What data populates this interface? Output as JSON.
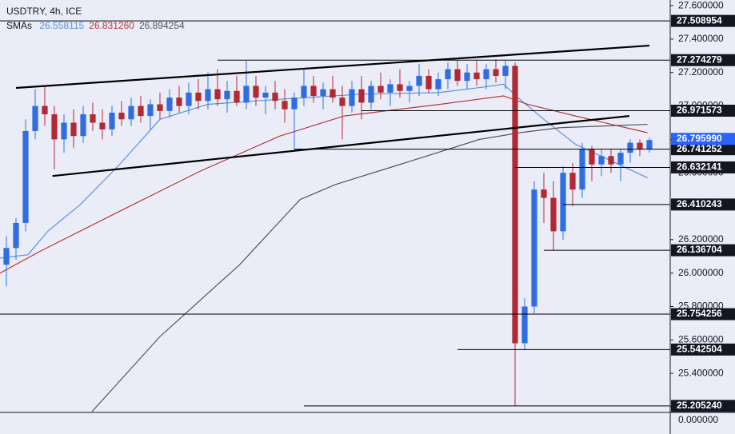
{
  "chart_data": {
    "type": "candlestick",
    "title": "USDTRY, 4h, ICE",
    "indicator_label": "SMAs",
    "xlim": [
      -0.6667,
      69.1667
    ],
    "ylim": [
      25.171,
      27.634
    ],
    "yticks": [
      {
        "value": 27.6,
        "label": "27.600000"
      },
      {
        "value": 27.4,
        "label": "27.400000"
      },
      {
        "value": 27.2,
        "label": "27.200000"
      },
      {
        "value": 27.0,
        "label": "27.000000"
      },
      {
        "value": 26.8,
        "label": "26.800000"
      },
      {
        "value": 26.6,
        "label": "26.600000"
      },
      {
        "value": 26.4,
        "label": "26.400000"
      },
      {
        "value": 26.2,
        "label": "26.200000"
      },
      {
        "value": 26.0,
        "label": "26.000000"
      },
      {
        "value": 25.8,
        "label": "25.800000"
      },
      {
        "value": 25.6,
        "label": "25.600000"
      },
      {
        "value": 25.4,
        "label": "25.400000"
      },
      {
        "value": 25.2,
        "label": "25.200000"
      }
    ],
    "lower_pane_label": "0.000000",
    "up_color": "#2f6de1",
    "down_color": "#b22833",
    "candles": {
      "open": [
        26.05,
        26.15,
        26.3,
        26.85,
        27.0,
        26.95,
        26.8,
        26.9,
        26.82,
        26.95,
        26.9,
        26.86,
        26.96,
        26.92,
        27.0,
        26.94,
        27.01,
        26.97,
        27.05,
        27.0,
        27.08,
        27.03,
        27.1,
        27.04,
        27.09,
        27.02,
        27.12,
        27.05,
        27.08,
        27.03,
        26.98,
        27.05,
        27.12,
        27.06,
        27.1,
        27.05,
        27.0,
        27.1,
        27.02,
        27.12,
        27.08,
        27.13,
        27.09,
        27.12,
        27.18,
        27.1,
        27.16,
        27.22,
        27.15,
        27.2,
        27.16,
        27.22,
        27.18,
        27.24,
        25.58,
        25.8,
        26.5,
        26.45,
        26.25,
        26.6,
        26.5,
        26.74,
        26.65,
        26.7,
        26.65,
        26.72,
        26.78,
        26.74
      ],
      "high": [
        26.22,
        26.33,
        26.92,
        27.1,
        27.12,
        27.0,
        26.95,
        26.98,
        27.0,
        27.02,
        26.98,
        27.0,
        27.03,
        27.05,
        27.06,
        27.04,
        27.08,
        27.1,
        27.12,
        27.14,
        27.16,
        27.2,
        27.22,
        27.15,
        27.18,
        27.27,
        27.18,
        27.12,
        27.15,
        27.1,
        27.08,
        27.22,
        27.18,
        27.14,
        27.18,
        27.12,
        27.15,
        27.18,
        27.15,
        27.2,
        27.16,
        27.22,
        27.15,
        27.25,
        27.22,
        27.2,
        27.26,
        27.27,
        27.25,
        27.27,
        27.25,
        27.28,
        27.27,
        27.26,
        25.85,
        26.55,
        26.6,
        26.55,
        26.64,
        26.66,
        26.78,
        26.76,
        26.74,
        26.74,
        26.74,
        26.8,
        26.8,
        26.81
      ],
      "low": [
        25.92,
        26.08,
        26.25,
        26.8,
        26.88,
        26.62,
        26.72,
        26.75,
        26.78,
        26.85,
        26.8,
        26.82,
        26.88,
        26.88,
        26.9,
        26.86,
        26.92,
        26.93,
        26.96,
        26.95,
        26.98,
        26.98,
        27.0,
        26.96,
        27.0,
        26.98,
        27.0,
        26.95,
        26.98,
        26.9,
        26.74,
        27.0,
        27.02,
        26.98,
        27.02,
        26.8,
        26.96,
        26.92,
        26.98,
        27.04,
        27.0,
        27.05,
        27.02,
        27.06,
        27.08,
        27.06,
        27.1,
        27.12,
        27.1,
        27.12,
        27.1,
        27.14,
        27.1,
        25.205,
        25.54,
        25.76,
        26.3,
        26.137,
        26.2,
        26.4,
        26.45,
        26.55,
        26.58,
        26.6,
        26.55,
        26.66,
        26.7,
        26.72
      ],
      "close": [
        26.15,
        26.3,
        26.85,
        27.0,
        26.95,
        26.8,
        26.9,
        26.82,
        26.95,
        26.9,
        26.86,
        26.96,
        26.92,
        27.0,
        26.94,
        27.01,
        26.97,
        27.05,
        27.0,
        27.08,
        27.03,
        27.1,
        27.04,
        27.09,
        27.02,
        27.12,
        27.05,
        27.08,
        27.03,
        26.98,
        27.05,
        27.12,
        27.06,
        27.1,
        27.05,
        27.0,
        27.1,
        27.02,
        27.12,
        27.08,
        27.13,
        27.09,
        27.12,
        27.18,
        27.1,
        27.16,
        27.22,
        27.15,
        27.2,
        27.16,
        27.22,
        27.18,
        27.24,
        25.58,
        25.8,
        26.5,
        26.45,
        26.25,
        26.6,
        26.5,
        26.74,
        26.65,
        26.7,
        26.65,
        26.72,
        26.78,
        26.74,
        26.796
      ]
    },
    "series": [
      {
        "color": "#5b8fe0",
        "legend": {
          "value": 26.558115,
          "label": "26.558115"
        },
        "x": [
          -0.67,
          2.25,
          4.3,
          7.7,
          11.8,
          16,
          21,
          28.5,
          36.8,
          45,
          49.3,
          51.8,
          53.5,
          56,
          59.3,
          62.7,
          66.8
        ],
        "values": [
          26.09,
          26.11,
          26.25,
          26.41,
          26.65,
          26.92,
          27.01,
          27.04,
          27.07,
          27.08,
          27.11,
          27.13,
          27.04,
          26.92,
          26.77,
          26.68,
          26.57
        ]
      },
      {
        "color": "#b23a3a",
        "legend": {
          "value": 26.83126,
          "label": "26.831260"
        },
        "x": [
          -0.67,
          3.5,
          11.8,
          20.2,
          28.5,
          35.2,
          45.2,
          51.8,
          54.3,
          59.3,
          66.8
        ],
        "values": [
          26.0,
          26.13,
          26.37,
          26.61,
          26.82,
          26.94,
          27.01,
          27.06,
          27.01,
          26.94,
          26.84
        ]
      },
      {
        "color": "#555555",
        "legend": {
          "value": 26.894254,
          "label": "26.894254"
        },
        "x": [
          8.9,
          16,
          24.3,
          30.6,
          34.3,
          41,
          49.3,
          53.5,
          57.7,
          66.8
        ],
        "values": [
          25.17,
          25.62,
          26.05,
          26.44,
          26.53,
          26.65,
          26.8,
          26.84,
          26.87,
          26.89
        ]
      }
    ],
    "trendlines": [
      {
        "x": [
          1,
          67
        ],
        "values": [
          27.108,
          27.361
        ]
      },
      {
        "x": [
          4.8,
          64.9
        ],
        "values": [
          26.581,
          26.94
        ]
      }
    ],
    "levels": [
      {
        "value": 27.508954,
        "label": "27.508954"
      },
      {
        "value": 27.274279,
        "label": "27.274279",
        "from": 22
      },
      {
        "value": 26.971573,
        "label": "26.971573",
        "from": 37
      },
      {
        "value": 26.741252,
        "label": "26.741252",
        "from": 30
      },
      {
        "value": 26.632141,
        "label": "26.632141",
        "from": 53
      },
      {
        "value": 26.410243,
        "label": "26.410243",
        "from": 58
      },
      {
        "value": 26.136704,
        "label": "26.136704",
        "from": 56
      },
      {
        "value": 25.754256,
        "label": "25.754256"
      },
      {
        "value": 25.542504,
        "label": "25.542504",
        "from": 47
      },
      {
        "value": 25.20524,
        "label": "25.205240",
        "from": 31
      }
    ],
    "current_price": {
      "value": 26.79599,
      "label": "26.795990",
      "color": "#2962ff"
    }
  }
}
